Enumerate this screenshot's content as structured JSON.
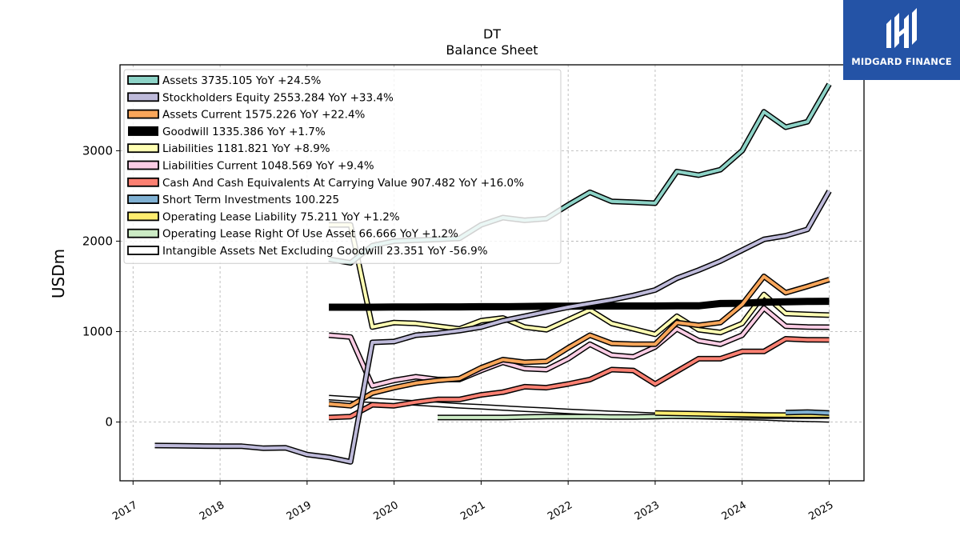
{
  "brand": {
    "name": "MIDGARD FINANCE",
    "logo_icon": "midgard-logo-icon",
    "bg_color": "#2453a6"
  },
  "chart_data": {
    "type": "line",
    "title": "DT",
    "subtitle": "Balance  Sheet",
    "xlabel": "",
    "ylabel": "USDm",
    "xlim": [
      2016.85,
      2025.4
    ],
    "ylim": [
      -650,
      3950
    ],
    "x_ticks": [
      2017,
      2018,
      2019,
      2020,
      2021,
      2022,
      2023,
      2024,
      2025
    ],
    "y_ticks": [
      0,
      1000,
      2000,
      3000
    ],
    "grid": true,
    "legend_position": "top-left",
    "series": [
      {
        "name": "Assets",
        "legend": "Assets  3735.105 YoY +24.5%",
        "color": "#8dd3c7",
        "points": [
          [
            2019.25,
            1800
          ],
          [
            2019.5,
            1760
          ],
          [
            2019.75,
            1950
          ],
          [
            2020.0,
            2000
          ],
          [
            2020.25,
            2010
          ],
          [
            2020.5,
            2020
          ],
          [
            2020.75,
            2030
          ],
          [
            2021.0,
            2180
          ],
          [
            2021.25,
            2260
          ],
          [
            2021.5,
            2230
          ],
          [
            2021.75,
            2250
          ],
          [
            2022.0,
            2400
          ],
          [
            2022.25,
            2540
          ],
          [
            2022.5,
            2440
          ],
          [
            2022.75,
            2430
          ],
          [
            2023.0,
            2420
          ],
          [
            2023.25,
            2770
          ],
          [
            2023.5,
            2730
          ],
          [
            2023.75,
            2790
          ],
          [
            2024.0,
            3000
          ],
          [
            2024.25,
            3430
          ],
          [
            2024.5,
            3260
          ],
          [
            2024.75,
            3320
          ],
          [
            2025.0,
            3735.105
          ]
        ]
      },
      {
        "name": "Stockholders Equity",
        "legend": "Stockholders Equity  2553.284 YoY +33.4%",
        "color": "#bebada",
        "points": [
          [
            2017.25,
            -260
          ],
          [
            2017.5,
            -262
          ],
          [
            2017.75,
            -265
          ],
          [
            2018.0,
            -268
          ],
          [
            2018.25,
            -268
          ],
          [
            2018.5,
            -290
          ],
          [
            2018.75,
            -285
          ],
          [
            2019.0,
            -360
          ],
          [
            2019.25,
            -390
          ],
          [
            2019.5,
            -440
          ],
          [
            2019.75,
            880
          ],
          [
            2020.0,
            890
          ],
          [
            2020.25,
            960
          ],
          [
            2020.5,
            980
          ],
          [
            2020.75,
            1010
          ],
          [
            2021.0,
            1050
          ],
          [
            2021.25,
            1120
          ],
          [
            2021.5,
            1170
          ],
          [
            2021.75,
            1220
          ],
          [
            2022.0,
            1270
          ],
          [
            2022.25,
            1310
          ],
          [
            2022.5,
            1350
          ],
          [
            2022.75,
            1400
          ],
          [
            2023.0,
            1460
          ],
          [
            2023.25,
            1590
          ],
          [
            2023.5,
            1680
          ],
          [
            2023.75,
            1780
          ],
          [
            2024.0,
            1900
          ],
          [
            2024.25,
            2020
          ],
          [
            2024.5,
            2060
          ],
          [
            2024.75,
            2130
          ],
          [
            2025.0,
            2553.284
          ]
        ]
      },
      {
        "name": "Assets Current",
        "legend": "Assets Current  1575.226 YoY +22.4%",
        "color": "#f9a65a",
        "points": [
          [
            2019.25,
            200
          ],
          [
            2019.5,
            180
          ],
          [
            2019.75,
            320
          ],
          [
            2020.0,
            380
          ],
          [
            2020.25,
            430
          ],
          [
            2020.5,
            460
          ],
          [
            2020.75,
            480
          ],
          [
            2021.0,
            600
          ],
          [
            2021.25,
            690
          ],
          [
            2021.5,
            660
          ],
          [
            2021.75,
            670
          ],
          [
            2022.0,
            820
          ],
          [
            2022.25,
            960
          ],
          [
            2022.5,
            870
          ],
          [
            2022.75,
            860
          ],
          [
            2023.0,
            860
          ],
          [
            2023.25,
            1100
          ],
          [
            2023.5,
            1070
          ],
          [
            2023.75,
            1100
          ],
          [
            2024.0,
            1300
          ],
          [
            2024.25,
            1610
          ],
          [
            2024.5,
            1430
          ],
          [
            2024.75,
            1500
          ],
          [
            2025.0,
            1575.226
          ]
        ]
      },
      {
        "name": "Goodwill",
        "legend": "Goodwill  1335.386 YoY +1.7%",
        "color": "#000000",
        "thick": true,
        "points": [
          [
            2019.25,
            1270
          ],
          [
            2019.5,
            1270
          ],
          [
            2019.75,
            1270
          ],
          [
            2020.0,
            1272
          ],
          [
            2020.25,
            1272
          ],
          [
            2020.5,
            1273
          ],
          [
            2020.75,
            1273
          ],
          [
            2021.0,
            1275
          ],
          [
            2021.25,
            1275
          ],
          [
            2021.5,
            1278
          ],
          [
            2021.75,
            1280
          ],
          [
            2022.0,
            1280
          ],
          [
            2022.25,
            1283
          ],
          [
            2022.5,
            1283
          ],
          [
            2022.75,
            1283
          ],
          [
            2023.0,
            1283
          ],
          [
            2023.25,
            1285
          ],
          [
            2023.5,
            1285
          ],
          [
            2023.75,
            1310
          ],
          [
            2024.0,
            1313
          ],
          [
            2024.25,
            1325
          ],
          [
            2024.5,
            1330
          ],
          [
            2024.75,
            1333
          ],
          [
            2025.0,
            1335.386
          ]
        ]
      },
      {
        "name": "Liabilities",
        "legend": "Liabilities  1181.821 YoY +8.9%",
        "color": "#ffffb3",
        "points": [
          [
            2019.25,
            2180
          ],
          [
            2019.5,
            2180
          ],
          [
            2019.75,
            1050
          ],
          [
            2020.0,
            1100
          ],
          [
            2020.25,
            1090
          ],
          [
            2020.5,
            1060
          ],
          [
            2020.75,
            1030
          ],
          [
            2021.0,
            1120
          ],
          [
            2021.25,
            1150
          ],
          [
            2021.5,
            1050
          ],
          [
            2021.75,
            1020
          ],
          [
            2022.0,
            1130
          ],
          [
            2022.25,
            1240
          ],
          [
            2022.5,
            1090
          ],
          [
            2022.75,
            1030
          ],
          [
            2023.0,
            970
          ],
          [
            2023.25,
            1170
          ],
          [
            2023.5,
            1020
          ],
          [
            2023.75,
            990
          ],
          [
            2024.0,
            1090
          ],
          [
            2024.25,
            1410
          ],
          [
            2024.5,
            1200
          ],
          [
            2024.75,
            1190
          ],
          [
            2025.0,
            1181.821
          ]
        ]
      },
      {
        "name": "Liabilities Current",
        "legend": "Liabilities Current  1048.569 YoY +9.4%",
        "color": "#fccde5",
        "points": [
          [
            2019.25,
            960
          ],
          [
            2019.5,
            940
          ],
          [
            2019.75,
            400
          ],
          [
            2020.0,
            460
          ],
          [
            2020.25,
            500
          ],
          [
            2020.5,
            470
          ],
          [
            2020.75,
            470
          ],
          [
            2021.0,
            570
          ],
          [
            2021.25,
            660
          ],
          [
            2021.5,
            590
          ],
          [
            2021.75,
            580
          ],
          [
            2022.0,
            700
          ],
          [
            2022.25,
            860
          ],
          [
            2022.5,
            740
          ],
          [
            2022.75,
            720
          ],
          [
            2023.0,
            830
          ],
          [
            2023.25,
            1030
          ],
          [
            2023.5,
            900
          ],
          [
            2023.75,
            860
          ],
          [
            2024.0,
            960
          ],
          [
            2024.25,
            1260
          ],
          [
            2024.5,
            1060
          ],
          [
            2024.75,
            1050
          ],
          [
            2025.0,
            1048.569
          ]
        ]
      },
      {
        "name": "Cash And Cash Equivalents At Carrying Value",
        "legend": "Cash And Cash Equivalents At Carrying Value  907.482 YoY +16.0%",
        "color": "#fb8072",
        "points": [
          [
            2019.25,
            50
          ],
          [
            2019.5,
            60
          ],
          [
            2019.75,
            190
          ],
          [
            2020.0,
            180
          ],
          [
            2020.25,
            220
          ],
          [
            2020.5,
            250
          ],
          [
            2020.75,
            250
          ],
          [
            2021.0,
            300
          ],
          [
            2021.25,
            330
          ],
          [
            2021.5,
            390
          ],
          [
            2021.75,
            380
          ],
          [
            2022.0,
            420
          ],
          [
            2022.25,
            470
          ],
          [
            2022.5,
            580
          ],
          [
            2022.75,
            570
          ],
          [
            2023.0,
            420
          ],
          [
            2023.25,
            560
          ],
          [
            2023.5,
            700
          ],
          [
            2023.75,
            700
          ],
          [
            2024.0,
            780
          ],
          [
            2024.25,
            780
          ],
          [
            2024.5,
            920
          ],
          [
            2024.75,
            910
          ],
          [
            2025.0,
            907.482
          ]
        ]
      },
      {
        "name": "Short Term Investments",
        "legend": "Short Term Investments  100.225",
        "color": "#80b1d3",
        "points": [
          [
            2024.5,
            105
          ],
          [
            2024.75,
            110
          ],
          [
            2025.0,
            100.225
          ]
        ]
      },
      {
        "name": "Operating Lease Liability",
        "legend": "Operating Lease Liability  75.211 YoY +1.2%",
        "color": "#ffed6f",
        "points": [
          [
            2023.0,
            100
          ],
          [
            2023.25,
            95
          ],
          [
            2023.5,
            90
          ],
          [
            2023.75,
            85
          ],
          [
            2024.0,
            82
          ],
          [
            2024.25,
            78
          ],
          [
            2024.5,
            76
          ],
          [
            2024.75,
            75
          ],
          [
            2025.0,
            75.211
          ]
        ]
      },
      {
        "name": "Operating Lease Right Of Use Asset",
        "legend": "Operating Lease Right Of Use Asset  66.666 YoY +1.2%",
        "color": "#ccebc5",
        "points": [
          [
            2020.5,
            50
          ],
          [
            2020.75,
            50
          ],
          [
            2021.0,
            50
          ],
          [
            2021.25,
            50
          ],
          [
            2021.5,
            55
          ],
          [
            2021.75,
            60
          ],
          [
            2022.0,
            60
          ],
          [
            2022.25,
            60
          ],
          [
            2022.5,
            55
          ],
          [
            2022.75,
            55
          ],
          [
            2023.0,
            60
          ],
          [
            2023.25,
            65
          ],
          [
            2023.5,
            62
          ],
          [
            2023.75,
            60
          ],
          [
            2024.0,
            65
          ],
          [
            2024.25,
            65
          ],
          [
            2024.5,
            66
          ],
          [
            2024.75,
            66
          ],
          [
            2025.0,
            66.666
          ]
        ]
      },
      {
        "name": "Intangible Assets Net Excluding Goodwill",
        "legend": "Intangible Assets Net Excluding Goodwill  23.351 YoY -56.9%",
        "color": "#ffffff",
        "points": [
          [
            2019.25,
            270
          ],
          [
            2019.5,
            255
          ],
          [
            2019.75,
            240
          ],
          [
            2020.0,
            225
          ],
          [
            2020.25,
            210
          ],
          [
            2020.5,
            195
          ],
          [
            2020.75,
            180
          ],
          [
            2021.0,
            168
          ],
          [
            2021.25,
            155
          ],
          [
            2021.5,
            142
          ],
          [
            2021.75,
            130
          ],
          [
            2022.0,
            118
          ],
          [
            2022.25,
            106
          ],
          [
            2022.5,
            95
          ],
          [
            2022.75,
            85
          ],
          [
            2023.0,
            75
          ],
          [
            2023.25,
            65
          ],
          [
            2023.5,
            60
          ],
          [
            2023.75,
            54
          ],
          [
            2024.0,
            50
          ],
          [
            2024.25,
            45
          ],
          [
            2024.5,
            36
          ],
          [
            2024.75,
            30
          ],
          [
            2025.0,
            23.351
          ]
        ]
      }
    ]
  }
}
